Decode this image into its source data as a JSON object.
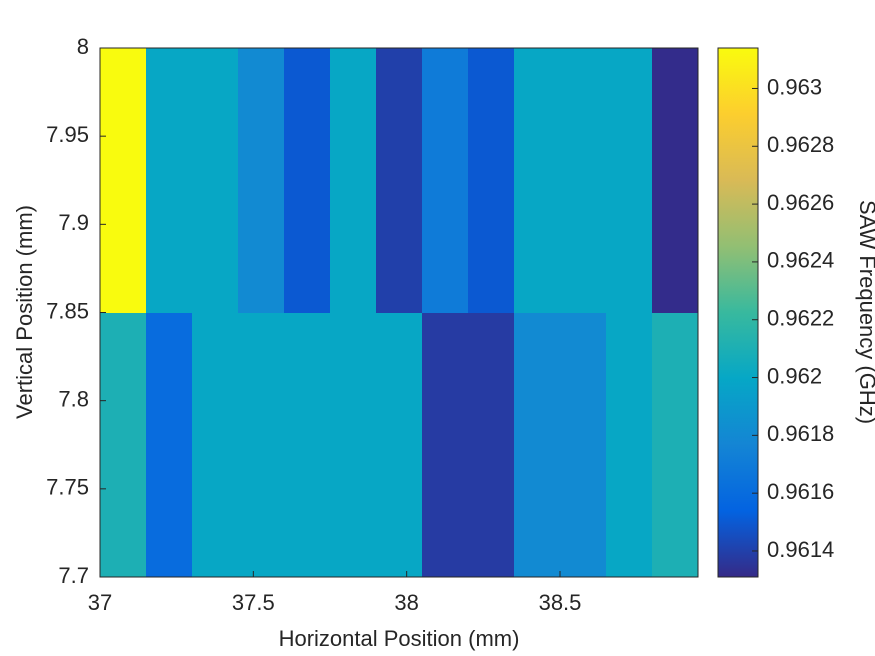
{
  "chart_data": {
    "type": "heatmap",
    "xlabel": "Horizontal Position (mm)",
    "ylabel": "Vertical Position (mm)",
    "colorbar_label": "SAW Frequency (GHz)",
    "x": [
      37.075,
      37.225,
      37.375,
      37.525,
      37.675,
      37.825,
      37.975,
      38.125,
      38.275,
      38.425,
      38.575,
      38.725,
      38.875
    ],
    "y": [
      7.775,
      7.925
    ],
    "z": [
      [
        0.9621,
        0.9616,
        0.962,
        0.962,
        0.962,
        0.962,
        0.962,
        0.96138,
        0.96138,
        0.9618,
        0.9618,
        0.962,
        0.9621
      ],
      [
        0.96314,
        0.962,
        0.962,
        0.9618,
        0.9615,
        0.962,
        0.9614,
        0.9617,
        0.9615,
        0.962,
        0.962,
        0.962,
        0.96132
      ]
    ],
    "xlim": [
      37,
      38.95
    ],
    "ylim": [
      7.7,
      8
    ],
    "xticks": [
      37,
      37.5,
      38,
      38.5
    ],
    "yticks": [
      7.7,
      7.75,
      7.8,
      7.85,
      7.9,
      7.95,
      8
    ],
    "clim": [
      0.96131,
      0.96314
    ],
    "cticks": [
      0.9614,
      0.9616,
      0.9618,
      0.962,
      0.9622,
      0.9624,
      0.9626,
      0.9628,
      0.963
    ],
    "colormap": [
      "#352a87",
      "#0363e1",
      "#1485d4",
      "#06a7c6",
      "#38b99e",
      "#92bf73",
      "#d9ba56",
      "#fcce2e",
      "#f9fb0e"
    ]
  }
}
